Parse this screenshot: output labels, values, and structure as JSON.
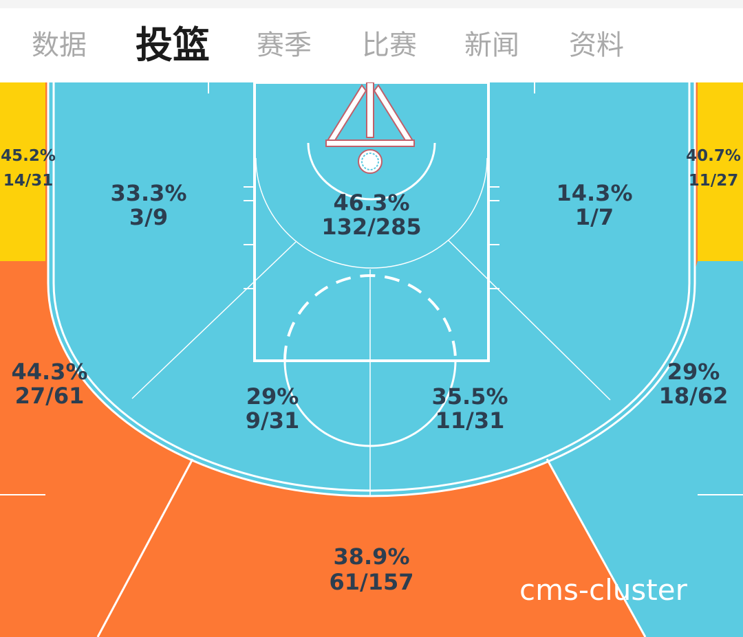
{
  "tabs": [
    {
      "label": "数据",
      "active": false
    },
    {
      "label": "投篮",
      "active": true
    },
    {
      "label": "赛季",
      "active": false
    },
    {
      "label": "比赛",
      "active": false
    },
    {
      "label": "新闻",
      "active": false
    },
    {
      "label": "资料",
      "active": false
    }
  ],
  "zones": {
    "left_corner_three": {
      "pct": "45.2%",
      "made_att": "14/31"
    },
    "right_corner_three": {
      "pct": "40.7%",
      "made_att": "11/27"
    },
    "left_baseline_mid": {
      "pct": "33.3%",
      "made_att": "3/9"
    },
    "paint": {
      "pct": "46.3%",
      "made_att": "132/285"
    },
    "right_baseline_mid": {
      "pct": "14.3%",
      "made_att": "1/7"
    },
    "left_wing_three": {
      "pct": "44.3%",
      "made_att": "27/61"
    },
    "left_elbow_mid": {
      "pct": "29%",
      "made_att": "9/31"
    },
    "right_elbow_mid": {
      "pct": "35.5%",
      "made_att": "11/31"
    },
    "right_wing_three": {
      "pct": "29%",
      "made_att": "18/62"
    },
    "top_three": {
      "pct": "38.9%",
      "made_att": "61/157"
    }
  },
  "colors": {
    "cold": "#5bcbe1",
    "average": "#fdd10a",
    "hot": "#fd7834",
    "line": "#ffffff",
    "label": "#2c3e50"
  },
  "watermark": "cms-cluster"
}
